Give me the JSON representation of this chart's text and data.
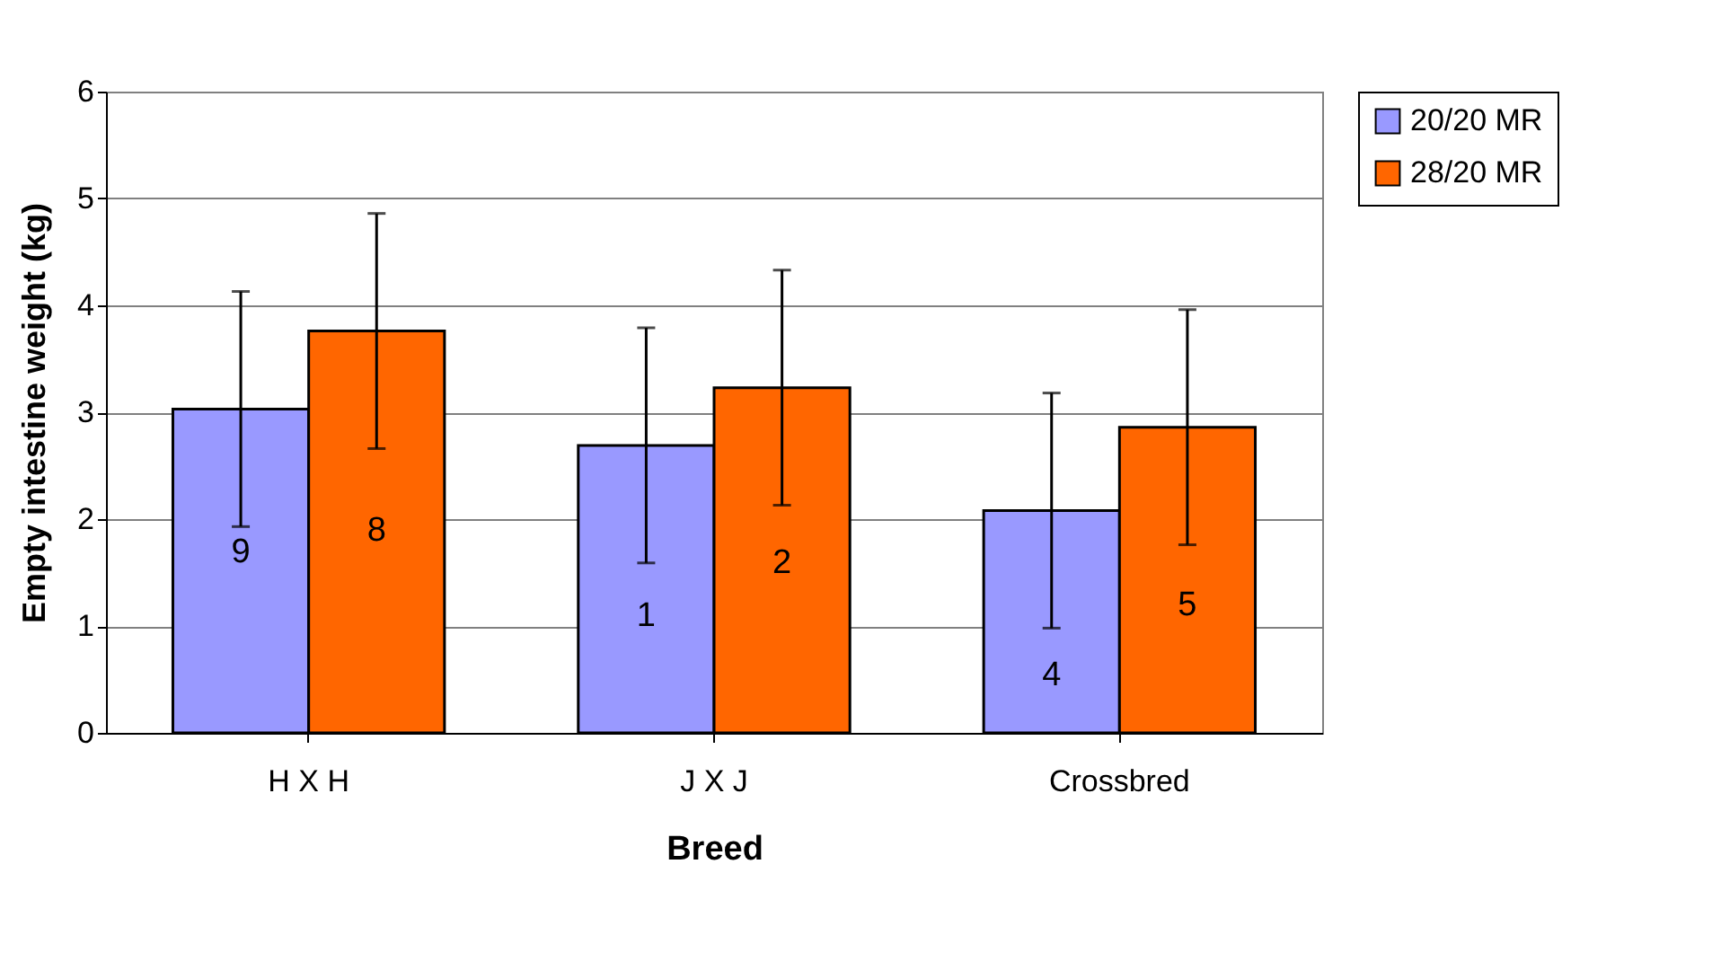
{
  "chart_data": {
    "type": "bar",
    "xlabel": "Breed",
    "ylabel": "Empty intestine weight (kg)",
    "categories": [
      "H X H",
      "J X J",
      "Crossbred"
    ],
    "series": [
      {
        "name": "20/20 MR",
        "color": "#9999ff",
        "values": [
          3.03,
          2.69,
          2.08
        ],
        "errors": [
          1.1,
          1.1,
          1.1
        ]
      },
      {
        "name": "28/20 MR",
        "color": "#ff6600",
        "values": [
          3.76,
          3.23,
          2.86
        ],
        "errors": [
          1.1,
          1.1,
          1.1
        ]
      }
    ],
    "ylim": [
      0,
      6
    ],
    "yticks": [
      0,
      1,
      2,
      3,
      4,
      5,
      6
    ],
    "grid": "y",
    "legend": "right",
    "annotations": [
      {
        "text": "9",
        "x": "H X H",
        "y": 1.7
      },
      {
        "text": "8",
        "x": "H X H",
        "y": 1.9
      },
      {
        "text": "1",
        "x": "J X J",
        "y": 1.1
      },
      {
        "text": "2",
        "x": "J X J",
        "y": 1.6
      },
      {
        "text": "4",
        "x": "Crossbred",
        "y": 0.55
      },
      {
        "text": "5",
        "x": "Crossbred",
        "y": 1.2
      }
    ]
  }
}
